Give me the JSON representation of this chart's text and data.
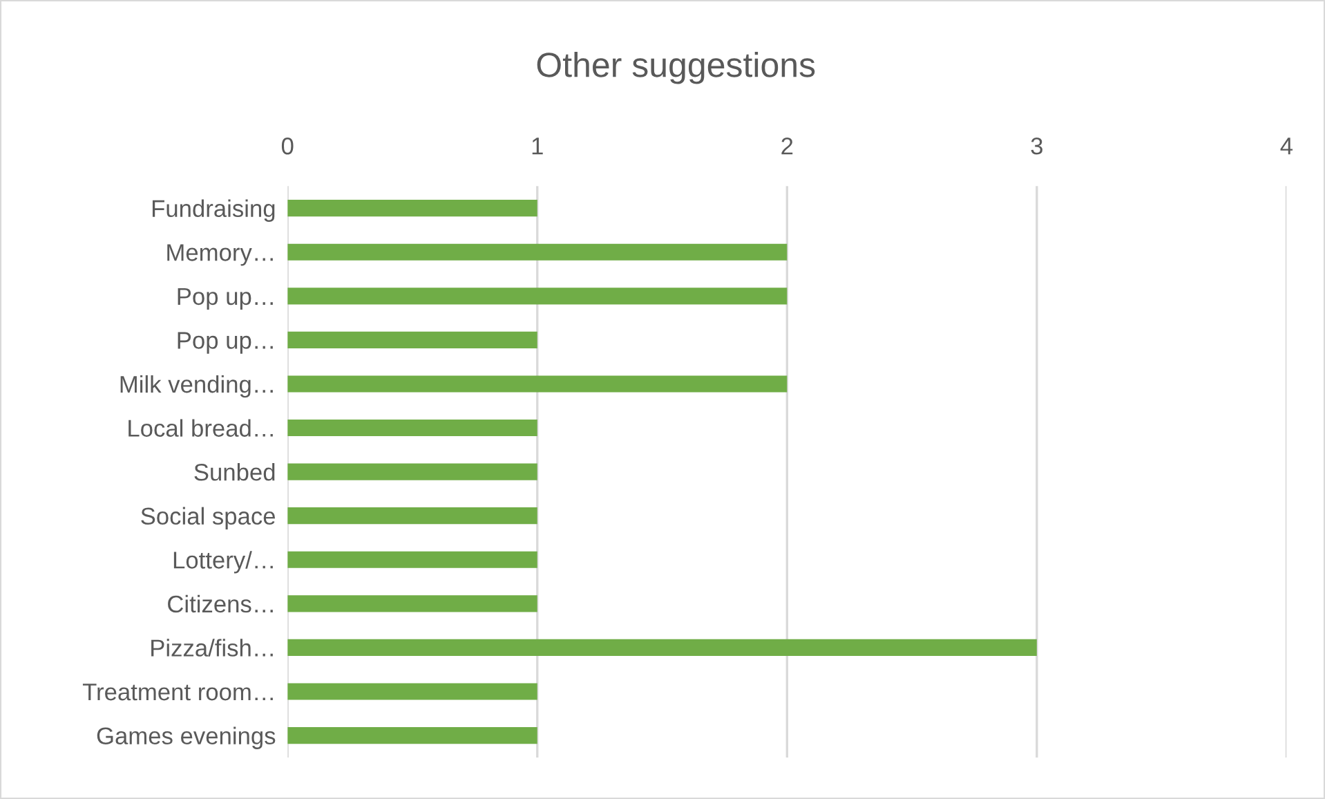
{
  "chart_data": {
    "type": "bar",
    "orientation": "horizontal",
    "title": "Other suggestions",
    "categories": [
      "Fundraising",
      "Memory…",
      "Pop up…",
      "Pop up…",
      "Milk vending…",
      "Local bread…",
      "Sunbed",
      "Social space",
      "Lottery/…",
      "Citizens…",
      "Pizza/fish…",
      "Treatment room…",
      "Games evenings"
    ],
    "values": [
      1,
      2,
      2,
      1,
      2,
      1,
      1,
      1,
      1,
      1,
      3,
      1,
      1
    ],
    "color": "#70ad47",
    "xlim": [
      0,
      4
    ],
    "xticks": [
      0,
      1,
      2,
      3,
      4
    ],
    "grid": "x"
  }
}
